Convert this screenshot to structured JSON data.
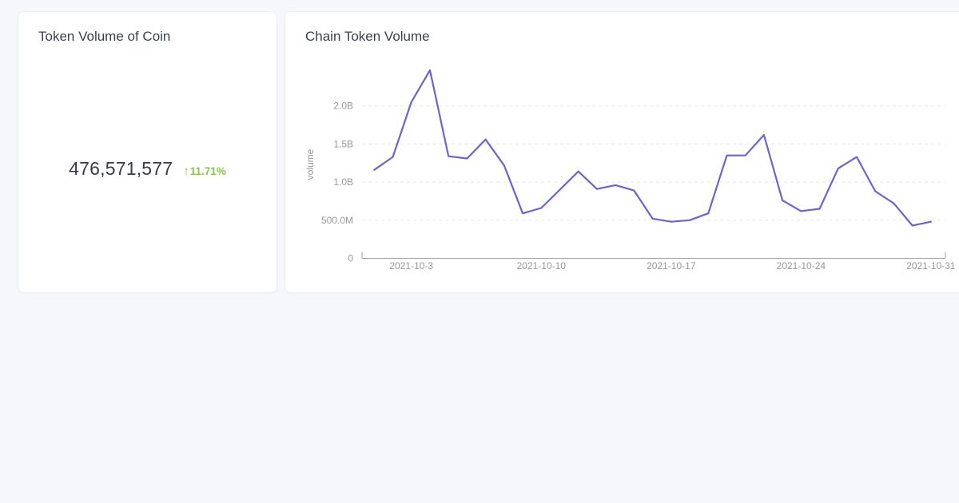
{
  "page": {
    "background": "#f6f7fa"
  },
  "stat_card": {
    "title": "Token Volume of Coin",
    "value": "476,571,577",
    "change": {
      "direction": "up",
      "arrow": "↑",
      "label": "11.71%",
      "color": "#8bc34a"
    }
  },
  "chart_card": {
    "title": "Chain Token Volume"
  },
  "chart_data": {
    "type": "line",
    "title": "Chain Token Volume",
    "xlabel": "",
    "ylabel": "volume",
    "x": [
      "2021-10-1",
      "2021-10-2",
      "2021-10-3",
      "2021-10-4",
      "2021-10-5",
      "2021-10-6",
      "2021-10-7",
      "2021-10-8",
      "2021-10-9",
      "2021-10-10",
      "2021-10-11",
      "2021-10-12",
      "2021-10-13",
      "2021-10-14",
      "2021-10-15",
      "2021-10-16",
      "2021-10-17",
      "2021-10-18",
      "2021-10-19",
      "2021-10-20",
      "2021-10-21",
      "2021-10-22",
      "2021-10-23",
      "2021-10-24",
      "2021-10-25",
      "2021-10-26",
      "2021-10-27",
      "2021-10-28",
      "2021-10-29",
      "2021-10-30",
      "2021-10-31"
    ],
    "series": [
      {
        "name": "volume",
        "values_billions": [
          1.16,
          1.33,
          2.05,
          2.47,
          1.34,
          1.31,
          1.56,
          1.22,
          0.59,
          0.66,
          0.9,
          1.14,
          0.91,
          0.96,
          0.89,
          0.52,
          0.48,
          0.5,
          0.59,
          1.35,
          1.35,
          1.62,
          0.76,
          0.62,
          0.65,
          1.18,
          1.33,
          0.88,
          0.72,
          0.43,
          0.48
        ]
      }
    ],
    "ylim_billions": [
      0,
      2.5
    ],
    "yticks": [
      {
        "value": 0,
        "label": "0"
      },
      {
        "value": 0.5,
        "label": "500.0M"
      },
      {
        "value": 1.0,
        "label": "1.0B"
      },
      {
        "value": 1.5,
        "label": "1.5B"
      },
      {
        "value": 2.0,
        "label": "2.0B"
      }
    ],
    "xtick_indices": [
      2,
      9,
      16,
      23,
      30
    ],
    "xtick_labels": [
      "2021-10-3",
      "2021-10-10",
      "2021-10-17",
      "2021-10-24",
      "2021-10-31"
    ],
    "grid": "dashed-horizontal",
    "legend": "none",
    "line_color": "#6a63d0",
    "axis_color": "#999da3",
    "tick_label_color": "#95989d",
    "grid_color": "#e7e8ec"
  }
}
